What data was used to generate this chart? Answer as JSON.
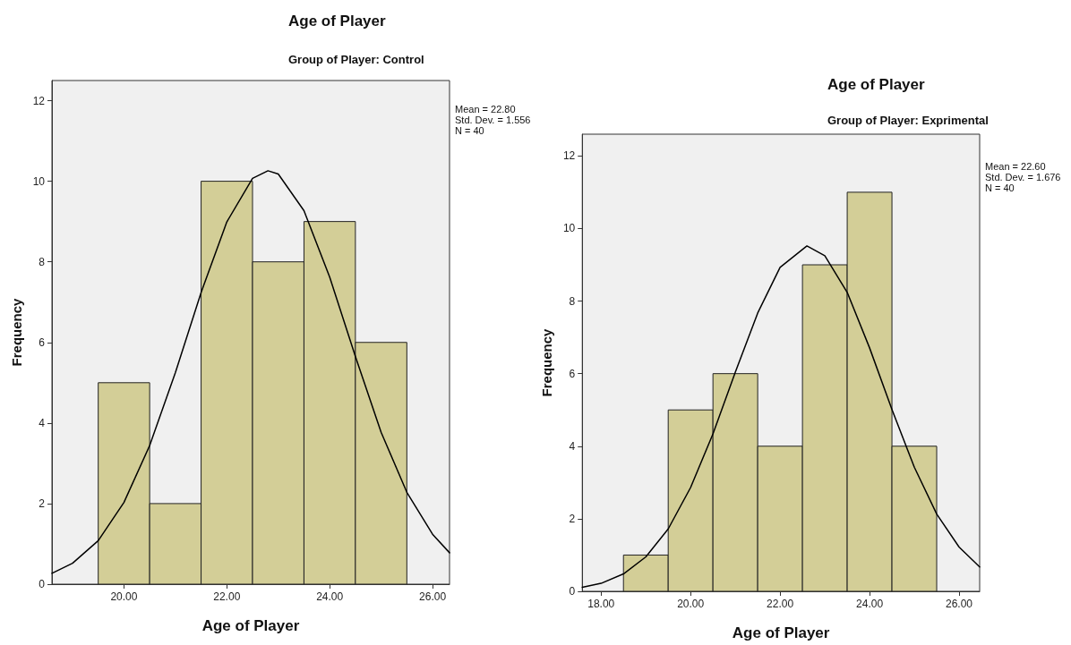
{
  "chart_data": [
    {
      "type": "histogram",
      "title": "Age of Player",
      "subtitle": "Group of Player: Control",
      "xlabel": "Age of Player",
      "ylabel": "Frequency",
      "annotations": [
        "Mean = 22.80",
        "Std. Dev. = 1.556",
        "N = 40"
      ],
      "xlim": [
        18.6,
        26.33
      ],
      "xticks": [
        {
          "value": 20,
          "label": "20.00"
        },
        {
          "value": 22,
          "label": "22.00"
        },
        {
          "value": 24,
          "label": "24.00"
        },
        {
          "value": 26,
          "label": "26.00"
        }
      ],
      "ylim": [
        0,
        12.5
      ],
      "yticks": [
        0,
        2,
        4,
        6,
        8,
        10,
        12
      ],
      "grid": false,
      "marker": "none",
      "series": [
        {
          "color": "#d3ce97",
          "bins": [
            19.5,
            20.5,
            21.5,
            22.5,
            23.5,
            24.5,
            25.5
          ],
          "values": [
            5,
            2,
            10,
            8,
            9,
            6
          ]
        },
        {
          "type": "line",
          "color": "#000000",
          "x": [
            18.6,
            19,
            19.5,
            20,
            20.5,
            21,
            21.5,
            22,
            22.5,
            22.8,
            23,
            23.5,
            24,
            24.5,
            25,
            25.5,
            26,
            26.33
          ],
          "values": [
            0.27,
            0.52,
            1.08,
            2.03,
            3.44,
            5.25,
            7.24,
            8.99,
            10.07,
            10.26,
            10.18,
            9.27,
            7.62,
            5.65,
            3.77,
            2.28,
            1.24,
            0.78
          ]
        }
      ]
    },
    {
      "type": "histogram",
      "title": "Age of Player",
      "subtitle": "Group of Player: Exprimental",
      "xlabel": "Age of Player",
      "ylabel": "Frequency",
      "annotations": [
        "Mean = 22.60",
        "Std. Dev. = 1.676",
        "N = 40"
      ],
      "xlim": [
        17.58,
        26.46
      ],
      "xticks": [
        {
          "value": 18,
          "label": "18.00"
        },
        {
          "value": 20,
          "label": "20.00"
        },
        {
          "value": 22,
          "label": "22.00"
        },
        {
          "value": 24,
          "label": "24.00"
        },
        {
          "value": 26,
          "label": "26.00"
        }
      ],
      "ylim": [
        0,
        12.6
      ],
      "yticks": [
        0,
        2,
        4,
        6,
        8,
        10,
        12
      ],
      "grid": false,
      "marker": "none",
      "series": [
        {
          "color": "#d3ce97",
          "bins": [
            18.5,
            19.5,
            20.5,
            21.5,
            22.5,
            23.5,
            24.5,
            25.5
          ],
          "values": [
            1,
            5,
            6,
            4,
            9,
            11,
            4
          ]
        },
        {
          "type": "line",
          "color": "#000000",
          "x": [
            17.58,
            18,
            18.5,
            19,
            19.5,
            20,
            20.5,
            21,
            21.5,
            22,
            22.6,
            23,
            23.5,
            24,
            24.5,
            25,
            25.5,
            26,
            26.46
          ],
          "values": [
            0.11,
            0.22,
            0.48,
            0.95,
            1.72,
            2.86,
            4.34,
            6.04,
            7.67,
            8.93,
            9.52,
            9.25,
            8.24,
            6.71,
            5.01,
            3.42,
            2.13,
            1.22,
            0.67
          ]
        }
      ]
    }
  ]
}
